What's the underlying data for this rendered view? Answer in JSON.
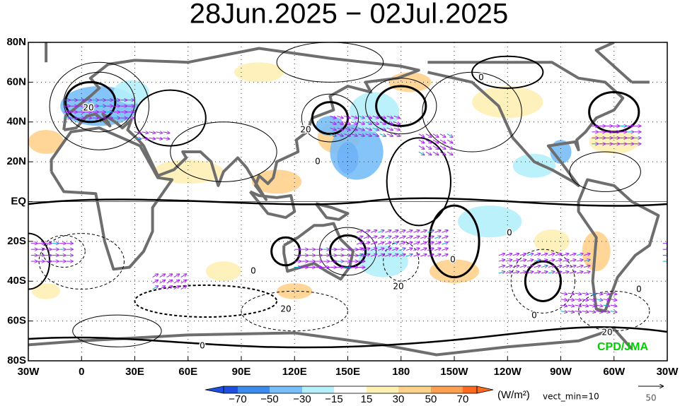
{
  "title": "28Jun.2025 − 02Jul.2025",
  "lat_labels": [
    "80N",
    "60N",
    "40N",
    "20N",
    "EQ",
    "20S",
    "40S",
    "60S",
    "80S"
  ],
  "lon_labels": [
    "30W",
    "0",
    "30E",
    "60E",
    "90E",
    "120E",
    "150E",
    "180",
    "150W",
    "120W",
    "90W",
    "60W",
    "30W"
  ],
  "contour_labels": [
    "20",
    "20",
    "0",
    "0",
    "0",
    "0",
    "0",
    "20",
    "0",
    "20",
    "0",
    "0",
    "20"
  ],
  "colorbar": {
    "labels": [
      "−70",
      "−50",
      "−30",
      "−15",
      "15",
      "30",
      "50",
      "70"
    ],
    "units": "(W/m²)",
    "vect_min": "vect_min=10"
  },
  "vector_ref": "50",
  "credit": "CPD/JMA"
}
